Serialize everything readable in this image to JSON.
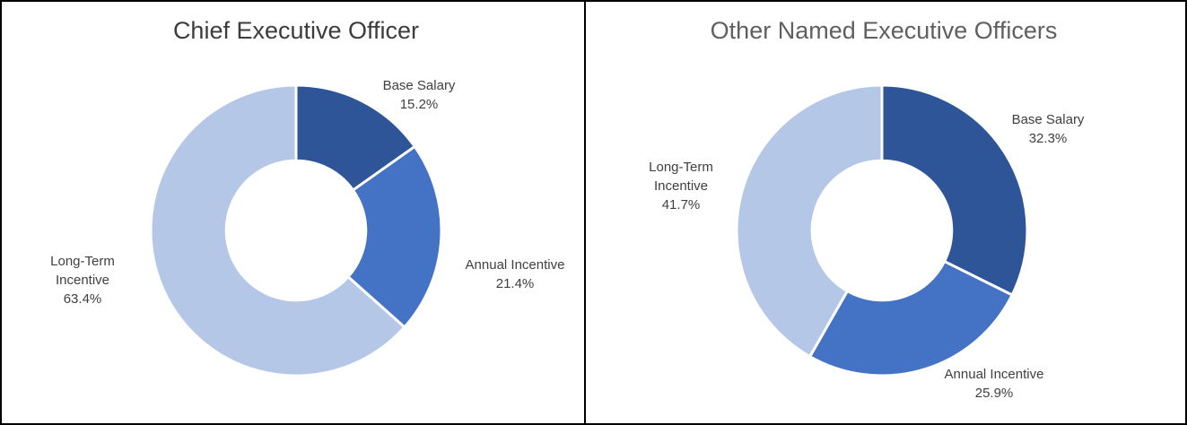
{
  "chart_data": [
    {
      "type": "donut",
      "title": "Chief Executive Officer",
      "labels": [
        "Base Salary",
        "Annual Incentive",
        "Long-Term Incentive"
      ],
      "values": [
        15.2,
        21.4,
        63.4
      ],
      "data_labels": [
        "15.2%",
        "21.4%",
        "63.4%"
      ],
      "colors": [
        "#2E5597",
        "#4472C4",
        "#B4C7E7"
      ],
      "slice_border_color": "#FFFFFF",
      "start_angle_deg": 0,
      "direction": "clockwise",
      "hole_ratio": 0.48,
      "legend": "none",
      "data_label_position": "outside"
    },
    {
      "type": "donut",
      "title": "Other Named Executive Officers",
      "labels": [
        "Base Salary",
        "Annual Incentive",
        "Long-Term Incentive"
      ],
      "values": [
        32.3,
        25.9,
        41.7
      ],
      "data_labels": [
        "32.3%",
        "25.9%",
        "41.7%"
      ],
      "colors": [
        "#2E5597",
        "#4472C4",
        "#B4C7E7"
      ],
      "slice_border_color": "#FFFFFF",
      "start_angle_deg": 0,
      "direction": "clockwise",
      "hole_ratio": 0.48,
      "legend": "none",
      "data_label_position": "outside"
    }
  ]
}
